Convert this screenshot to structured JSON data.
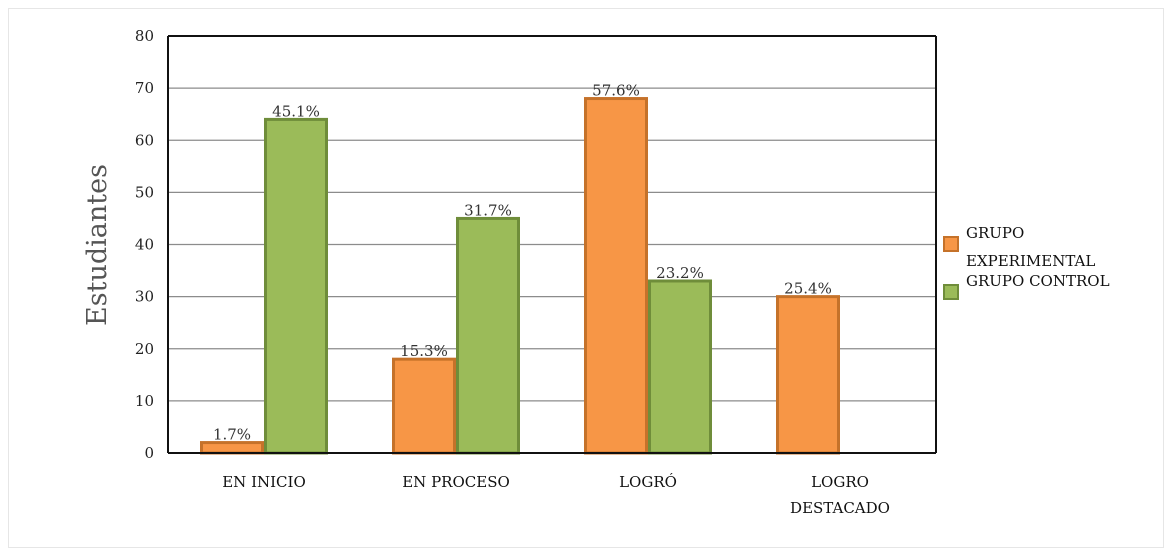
{
  "chart_data": {
    "type": "bar",
    "categories": [
      [
        "EN INICIO"
      ],
      [
        "EN PROCESO"
      ],
      [
        "LOGRÓ"
      ],
      [
        "LOGRO",
        "DESTACADO"
      ]
    ],
    "series": [
      {
        "name": [
          "GRUPO",
          "EXPERIMENTAL"
        ],
        "color": "#f79646",
        "border": "#c5722a",
        "values": [
          2,
          18,
          68,
          30
        ],
        "labels": [
          "1.7%",
          "15.3%",
          "57.6%",
          "25.4%"
        ]
      },
      {
        "name": [
          "GRUPO CONTROL"
        ],
        "color": "#9bbb59",
        "border": "#6f8d3a",
        "values": [
          64,
          45,
          33,
          0
        ],
        "labels": [
          "45.1%",
          "31.7%",
          "23.2%",
          ""
        ]
      }
    ],
    "ylabel": "Estudiantes",
    "ylim": [
      0,
      80
    ],
    "yticks": [
      0,
      10,
      20,
      30,
      40,
      50,
      60,
      70,
      80
    ],
    "grid": true,
    "legend_position": "right"
  }
}
